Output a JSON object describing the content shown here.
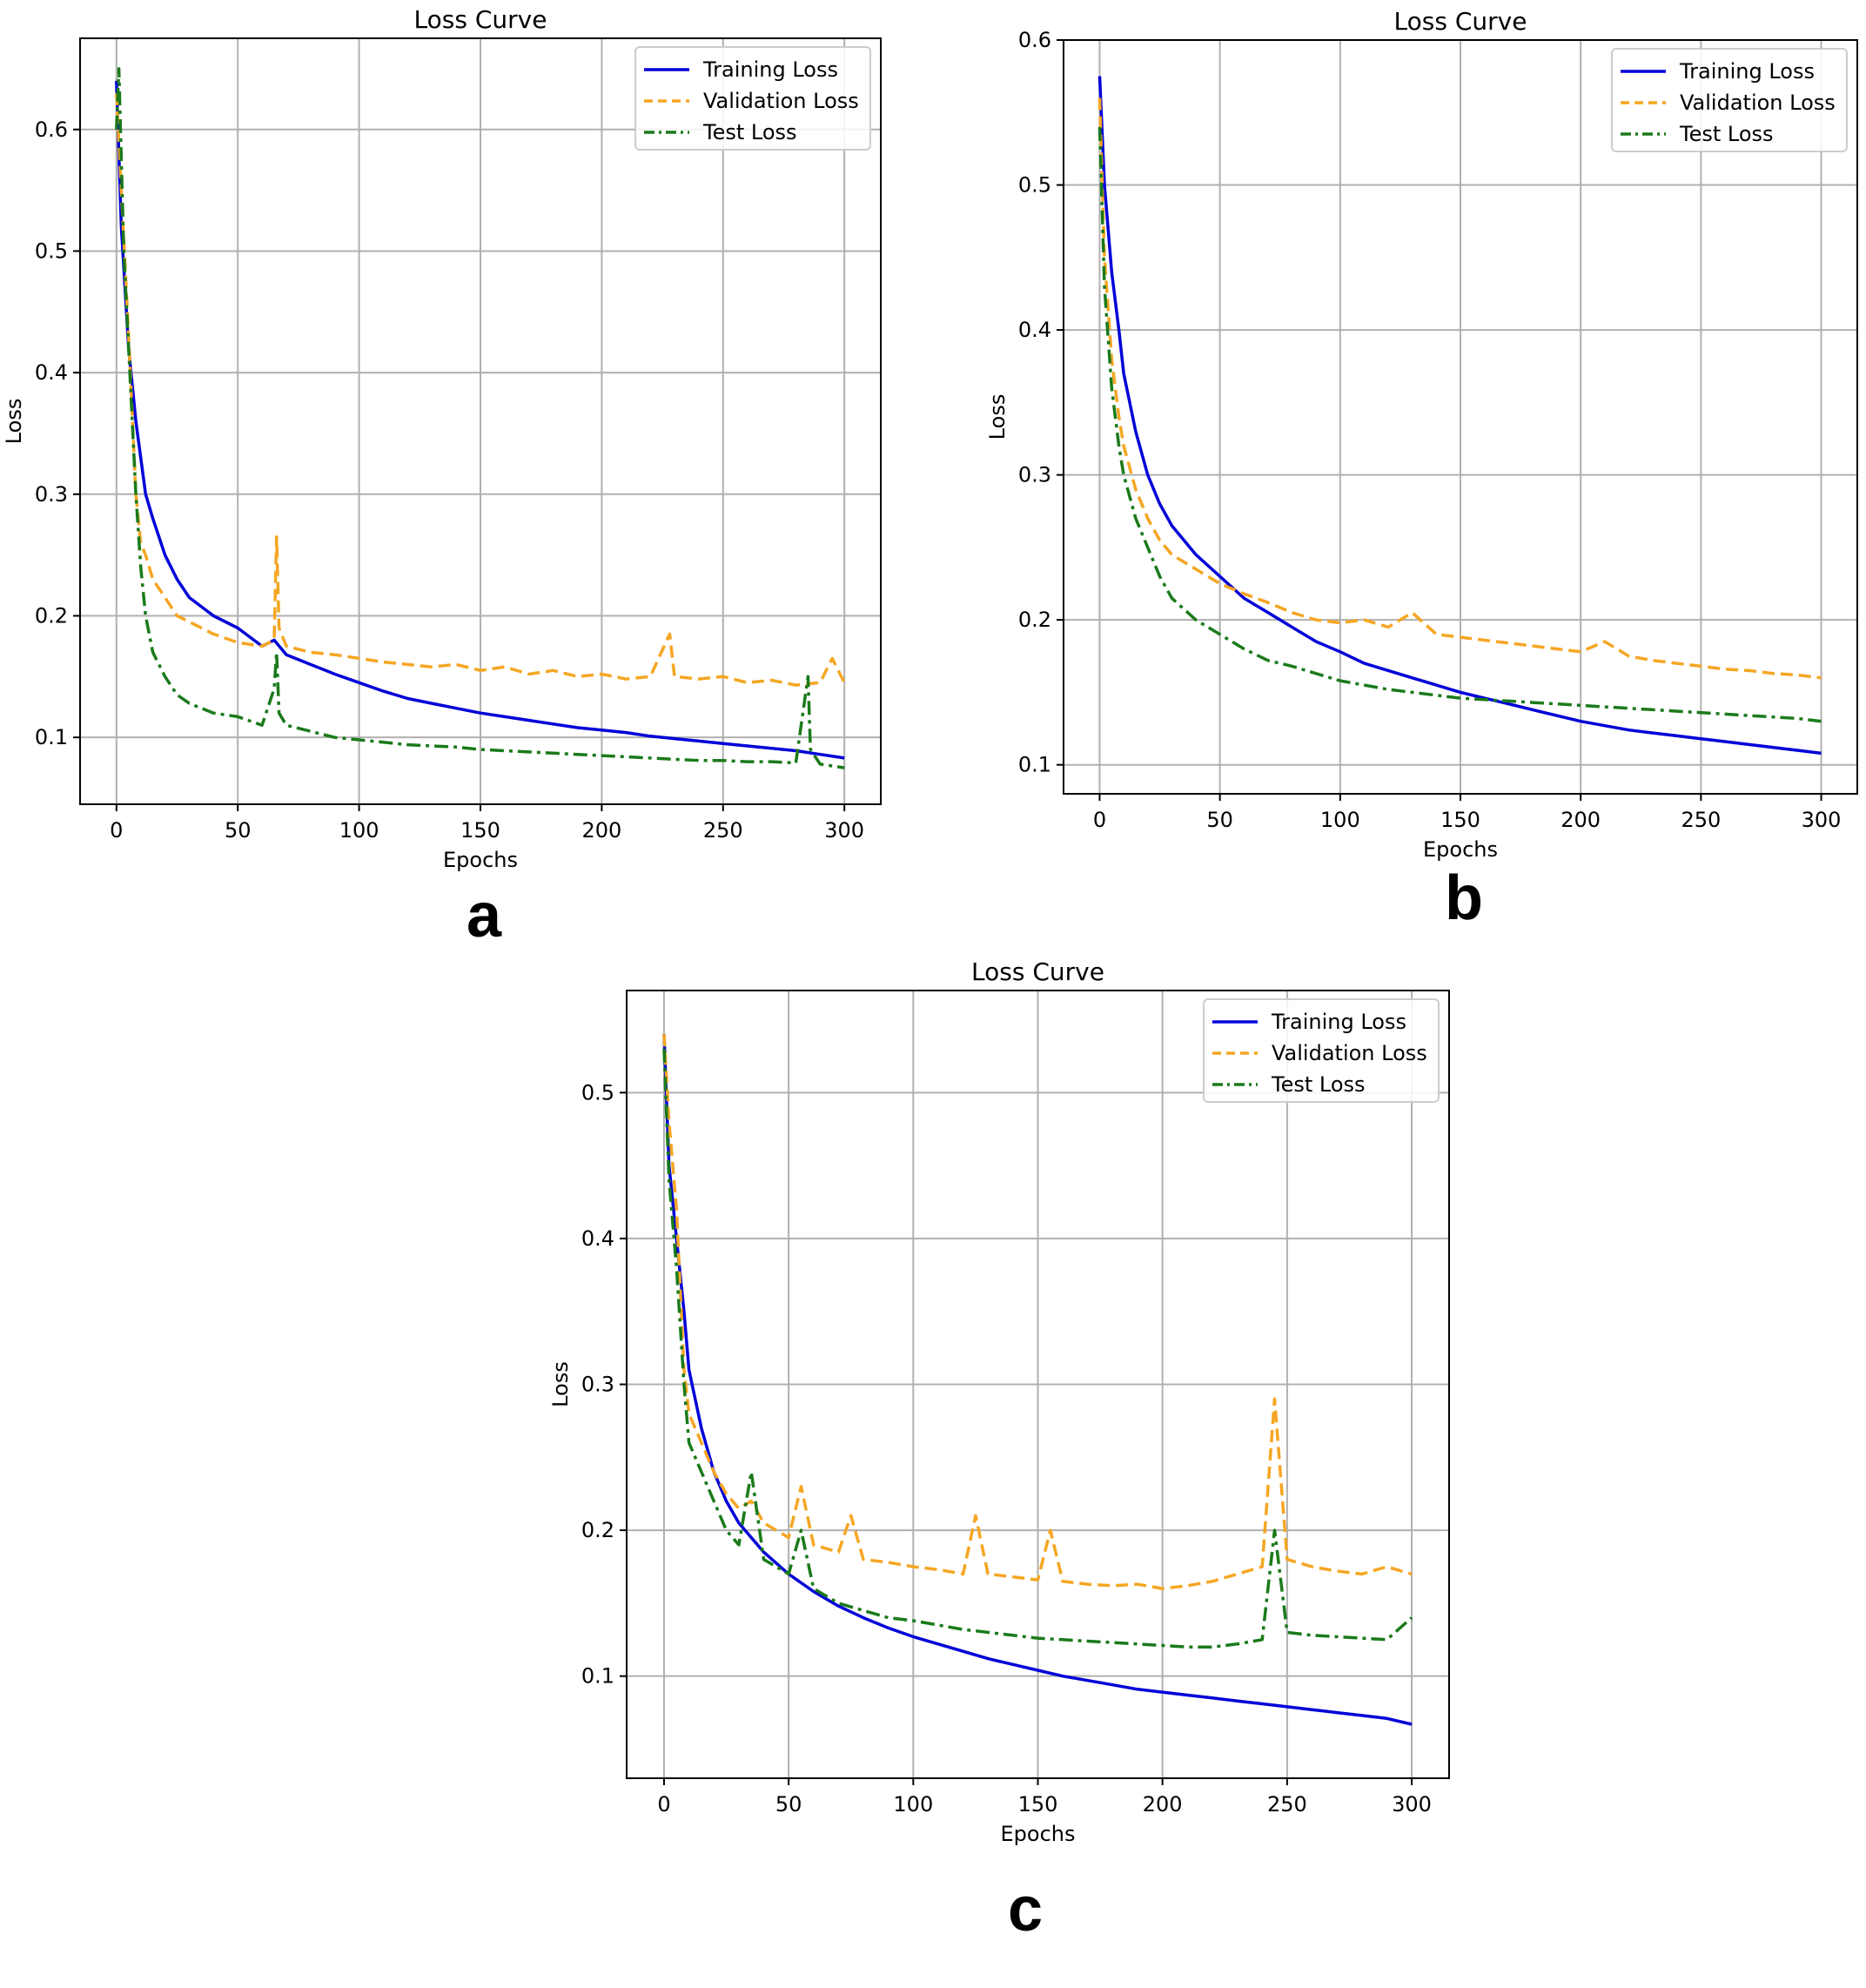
{
  "chart_data": [
    {
      "type": "line",
      "panel_label": "a",
      "title": "Loss Curve",
      "xlabel": "Epochs",
      "ylabel": "Loss",
      "xlim": [
        -15,
        315
      ],
      "ylim": [
        0.045,
        0.675
      ],
      "x_ticks": [
        0,
        50,
        100,
        150,
        200,
        250,
        300
      ],
      "y_ticks": [
        0.1,
        0.2,
        0.3,
        0.4,
        0.5,
        0.6
      ],
      "grid": true,
      "legend_position": "top-right",
      "series": [
        {
          "name": "Training Loss",
          "color": "#0000d8",
          "style": "solid",
          "x": [
            0,
            2,
            5,
            8,
            10,
            12,
            15,
            20,
            25,
            30,
            40,
            50,
            60,
            65,
            70,
            80,
            90,
            100,
            110,
            120,
            130,
            140,
            150,
            160,
            170,
            180,
            190,
            200,
            210,
            220,
            230,
            240,
            250,
            260,
            270,
            280,
            290,
            300
          ],
          "y": [
            0.64,
            0.52,
            0.42,
            0.36,
            0.33,
            0.3,
            0.28,
            0.25,
            0.23,
            0.215,
            0.2,
            0.19,
            0.175,
            0.18,
            0.168,
            0.16,
            0.152,
            0.145,
            0.138,
            0.132,
            0.128,
            0.124,
            0.12,
            0.117,
            0.114,
            0.111,
            0.108,
            0.106,
            0.104,
            0.101,
            0.099,
            0.097,
            0.095,
            0.093,
            0.091,
            0.089,
            0.086,
            0.083
          ]
        },
        {
          "name": "Validation Loss",
          "color": "#f5a623",
          "style": "dashed",
          "x": [
            0,
            2,
            5,
            8,
            10,
            12,
            15,
            20,
            25,
            30,
            40,
            50,
            60,
            65,
            66,
            67,
            70,
            80,
            90,
            100,
            110,
            120,
            130,
            140,
            150,
            160,
            170,
            180,
            190,
            200,
            210,
            220,
            228,
            230,
            240,
            250,
            260,
            270,
            280,
            290,
            295,
            300
          ],
          "y": [
            0.63,
            0.55,
            0.43,
            0.3,
            0.26,
            0.25,
            0.23,
            0.215,
            0.2,
            0.195,
            0.185,
            0.178,
            0.175,
            0.18,
            0.265,
            0.19,
            0.175,
            0.17,
            0.168,
            0.165,
            0.162,
            0.16,
            0.158,
            0.16,
            0.155,
            0.158,
            0.152,
            0.155,
            0.15,
            0.152,
            0.148,
            0.15,
            0.185,
            0.15,
            0.148,
            0.15,
            0.145,
            0.147,
            0.143,
            0.145,
            0.165,
            0.145
          ]
        },
        {
          "name": "Test Loss",
          "color": "#1a7a1a",
          "style": "dashdot",
          "x": [
            0,
            1,
            3,
            5,
            8,
            10,
            12,
            15,
            20,
            25,
            30,
            40,
            50,
            60,
            65,
            66,
            67,
            70,
            80,
            90,
            100,
            110,
            120,
            130,
            140,
            150,
            160,
            170,
            180,
            190,
            200,
            210,
            220,
            230,
            240,
            250,
            260,
            270,
            280,
            285,
            286,
            290,
            300
          ],
          "y": [
            0.6,
            0.65,
            0.5,
            0.42,
            0.3,
            0.24,
            0.2,
            0.17,
            0.15,
            0.135,
            0.128,
            0.12,
            0.117,
            0.11,
            0.14,
            0.17,
            0.12,
            0.11,
            0.105,
            0.1,
            0.098,
            0.096,
            0.094,
            0.093,
            0.092,
            0.09,
            0.089,
            0.088,
            0.087,
            0.086,
            0.085,
            0.084,
            0.083,
            0.082,
            0.081,
            0.081,
            0.08,
            0.08,
            0.079,
            0.15,
            0.09,
            0.078,
            0.075
          ]
        }
      ]
    },
    {
      "type": "line",
      "panel_label": "b",
      "title": "Loss Curve",
      "xlabel": "Epochs",
      "ylabel": "Loss",
      "xlim": [
        -15,
        315
      ],
      "ylim": [
        0.08,
        0.6
      ],
      "x_ticks": [
        0,
        50,
        100,
        150,
        200,
        250,
        300
      ],
      "y_ticks": [
        0.1,
        0.2,
        0.3,
        0.4,
        0.5,
        0.6
      ],
      "grid": true,
      "legend_position": "top-right",
      "series": [
        {
          "name": "Training Loss",
          "color": "#0000d8",
          "style": "solid",
          "x": [
            0,
            2,
            5,
            8,
            10,
            15,
            20,
            25,
            30,
            40,
            50,
            60,
            70,
            80,
            90,
            100,
            110,
            120,
            130,
            140,
            150,
            160,
            170,
            180,
            190,
            200,
            210,
            220,
            230,
            240,
            250,
            260,
            270,
            280,
            290,
            300
          ],
          "y": [
            0.575,
            0.5,
            0.44,
            0.4,
            0.37,
            0.33,
            0.3,
            0.28,
            0.265,
            0.245,
            0.23,
            0.215,
            0.205,
            0.195,
            0.185,
            0.178,
            0.17,
            0.165,
            0.16,
            0.155,
            0.15,
            0.146,
            0.142,
            0.138,
            0.134,
            0.13,
            0.127,
            0.124,
            0.122,
            0.12,
            0.118,
            0.116,
            0.114,
            0.112,
            0.11,
            0.108
          ]
        },
        {
          "name": "Validation Loss",
          "color": "#f5a623",
          "style": "dashed",
          "x": [
            0,
            2,
            5,
            8,
            10,
            15,
            20,
            25,
            30,
            40,
            50,
            60,
            70,
            80,
            90,
            100,
            110,
            120,
            130,
            140,
            150,
            160,
            170,
            180,
            190,
            200,
            210,
            220,
            230,
            240,
            250,
            260,
            270,
            280,
            290,
            300
          ],
          "y": [
            0.56,
            0.45,
            0.38,
            0.34,
            0.32,
            0.29,
            0.27,
            0.255,
            0.245,
            0.235,
            0.225,
            0.218,
            0.212,
            0.205,
            0.2,
            0.198,
            0.2,
            0.195,
            0.205,
            0.19,
            0.188,
            0.186,
            0.184,
            0.182,
            0.18,
            0.178,
            0.185,
            0.175,
            0.172,
            0.17,
            0.168,
            0.166,
            0.165,
            0.163,
            0.162,
            0.16
          ]
        },
        {
          "name": "Test Loss",
          "color": "#1a7a1a",
          "style": "dashdot",
          "x": [
            0,
            2,
            5,
            8,
            10,
            15,
            20,
            25,
            30,
            40,
            50,
            60,
            70,
            80,
            90,
            100,
            110,
            120,
            130,
            140,
            150,
            160,
            170,
            180,
            190,
            200,
            210,
            220,
            230,
            240,
            250,
            260,
            270,
            280,
            290,
            300
          ],
          "y": [
            0.54,
            0.43,
            0.36,
            0.32,
            0.3,
            0.27,
            0.25,
            0.23,
            0.215,
            0.2,
            0.19,
            0.18,
            0.172,
            0.168,
            0.163,
            0.158,
            0.155,
            0.152,
            0.15,
            0.148,
            0.146,
            0.145,
            0.144,
            0.143,
            0.142,
            0.141,
            0.14,
            0.139,
            0.138,
            0.137,
            0.136,
            0.135,
            0.134,
            0.133,
            0.132,
            0.13
          ]
        }
      ]
    },
    {
      "type": "line",
      "panel_label": "c",
      "title": "Loss Curve",
      "xlabel": "Epochs",
      "ylabel": "Loss",
      "xlim": [
        -15,
        315
      ],
      "ylim": [
        0.03,
        0.57
      ],
      "x_ticks": [
        0,
        50,
        100,
        150,
        200,
        250,
        300
      ],
      "y_ticks": [
        0.1,
        0.2,
        0.3,
        0.4,
        0.5
      ],
      "grid": true,
      "legend_position": "top-right",
      "series": [
        {
          "name": "Training Loss",
          "color": "#0000d8",
          "style": "solid",
          "x": [
            0,
            2,
            5,
            8,
            10,
            15,
            20,
            25,
            30,
            40,
            50,
            60,
            70,
            80,
            90,
            100,
            110,
            120,
            130,
            140,
            150,
            160,
            170,
            180,
            190,
            200,
            210,
            220,
            230,
            240,
            250,
            260,
            270,
            280,
            290,
            300
          ],
          "y": [
            0.54,
            0.45,
            0.4,
            0.35,
            0.31,
            0.27,
            0.24,
            0.22,
            0.205,
            0.185,
            0.17,
            0.158,
            0.148,
            0.14,
            0.133,
            0.127,
            0.122,
            0.117,
            0.112,
            0.108,
            0.104,
            0.1,
            0.097,
            0.094,
            0.091,
            0.089,
            0.087,
            0.085,
            0.083,
            0.081,
            0.079,
            0.077,
            0.075,
            0.073,
            0.071,
            0.067
          ]
        },
        {
          "name": "Validation Loss",
          "color": "#f5a623",
          "style": "dashed",
          "x": [
            0,
            2,
            5,
            8,
            10,
            15,
            20,
            25,
            30,
            35,
            40,
            50,
            55,
            60,
            70,
            75,
            80,
            90,
            100,
            110,
            120,
            125,
            130,
            140,
            150,
            155,
            160,
            170,
            180,
            190,
            200,
            210,
            220,
            230,
            240,
            245,
            250,
            260,
            270,
            280,
            290,
            300
          ],
          "y": [
            0.54,
            0.48,
            0.42,
            0.31,
            0.28,
            0.26,
            0.24,
            0.225,
            0.215,
            0.22,
            0.205,
            0.195,
            0.23,
            0.19,
            0.185,
            0.21,
            0.18,
            0.178,
            0.175,
            0.173,
            0.17,
            0.21,
            0.17,
            0.168,
            0.166,
            0.2,
            0.165,
            0.163,
            0.162,
            0.163,
            0.16,
            0.162,
            0.165,
            0.17,
            0.175,
            0.29,
            0.18,
            0.175,
            0.172,
            0.17,
            0.175,
            0.17
          ]
        },
        {
          "name": "Test Loss",
          "color": "#1a7a1a",
          "style": "dashdot",
          "x": [
            0,
            2,
            5,
            8,
            10,
            15,
            20,
            25,
            30,
            35,
            40,
            50,
            55,
            60,
            70,
            80,
            90,
            100,
            110,
            120,
            130,
            140,
            150,
            160,
            170,
            180,
            190,
            200,
            210,
            220,
            230,
            240,
            245,
            250,
            260,
            270,
            280,
            290,
            300
          ],
          "y": [
            0.53,
            0.44,
            0.38,
            0.3,
            0.26,
            0.24,
            0.22,
            0.2,
            0.19,
            0.24,
            0.18,
            0.17,
            0.2,
            0.16,
            0.15,
            0.145,
            0.14,
            0.138,
            0.135,
            0.132,
            0.13,
            0.128,
            0.126,
            0.125,
            0.124,
            0.123,
            0.122,
            0.121,
            0.12,
            0.12,
            0.122,
            0.125,
            0.2,
            0.13,
            0.128,
            0.127,
            0.126,
            0.125,
            0.14
          ]
        }
      ]
    }
  ]
}
